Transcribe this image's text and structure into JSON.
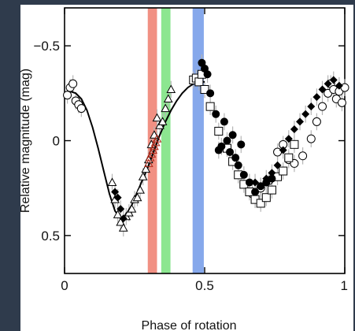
{
  "chart_data": {
    "type": "scatter",
    "title": "",
    "xlabel": "Phase of rotation",
    "ylabel": "Relative magnitude (mag)",
    "xlim": [
      0,
      1
    ],
    "ylim": [
      0.7,
      -0.7
    ],
    "inverted_y": true,
    "xticks": [
      0,
      0.5,
      1
    ],
    "xtick_labels": [
      "0",
      "0.5",
      "1"
    ],
    "yticks": [
      -0.5,
      0,
      0.5
    ],
    "ytick_labels": [
      "−0.5",
      "0",
      "0.5"
    ],
    "grid": false,
    "colors": {
      "background": "#2f3b4c",
      "plot_bg": "#ffffff",
      "red_band": "#f08a7c",
      "green_band": "#86e58a",
      "blue_band": "#7fa3ea",
      "marker": "#000000",
      "error_bar": "#b5b5b5"
    },
    "bands": [
      {
        "color_name": "red",
        "x_start": 0.297,
        "x_end": 0.33,
        "color": "#f08a7c"
      },
      {
        "color_name": "green",
        "x_start": 0.345,
        "x_end": 0.378,
        "color": "#86e58a"
      },
      {
        "color_name": "blue",
        "x_start": 0.457,
        "x_end": 0.497,
        "color": "#7fa3ea"
      }
    ],
    "model_curve": {
      "x": [
        0.0,
        0.02,
        0.04,
        0.06,
        0.08,
        0.1,
        0.12,
        0.14,
        0.16,
        0.18,
        0.2,
        0.22,
        0.24,
        0.26,
        0.28,
        0.3,
        0.32,
        0.34,
        0.36,
        0.38,
        0.4,
        0.42,
        0.44,
        0.46,
        0.48,
        0.5
      ],
      "y": [
        -0.25,
        -0.26,
        -0.25,
        -0.22,
        -0.16,
        -0.07,
        0.04,
        0.16,
        0.28,
        0.37,
        0.41,
        0.39,
        0.34,
        0.27,
        0.2,
        0.13,
        0.05,
        -0.03,
        -0.1,
        -0.16,
        -0.21,
        -0.25,
        -0.28,
        -0.3,
        -0.31,
        -0.31
      ]
    },
    "series": [
      {
        "marker": "circle-open",
        "x": [
          0.01,
          0.02,
          0.03,
          0.04,
          0.05,
          0.06,
          0.67,
          0.7,
          0.73,
          0.76,
          0.78,
          0.8,
          0.82,
          0.85,
          0.88,
          0.9,
          0.92,
          0.94,
          0.95,
          0.96,
          0.97,
          0.98,
          0.99,
          1.0
        ],
        "y": [
          -0.24,
          -0.28,
          -0.3,
          -0.21,
          -0.19,
          -0.17,
          0.28,
          0.25,
          0.21,
          0.06,
          0.02,
          0.1,
          0.12,
          0.08,
          -0.01,
          -0.1,
          -0.18,
          -0.25,
          -0.3,
          -0.27,
          -0.22,
          -0.26,
          -0.2,
          -0.28
        ]
      },
      {
        "marker": "triangle-open",
        "x": [
          0.17,
          0.18,
          0.19,
          0.2,
          0.21,
          0.22,
          0.23,
          0.24,
          0.25,
          0.26,
          0.27,
          0.28,
          0.29,
          0.3,
          0.31,
          0.32,
          0.33,
          0.34,
          0.35,
          0.36,
          0.37,
          0.38
        ],
        "y": [
          0.22,
          0.31,
          0.39,
          0.43,
          0.46,
          0.4,
          0.38,
          0.36,
          0.31,
          0.3,
          0.26,
          0.19,
          0.15,
          0.1,
          0.02,
          -0.03,
          -0.12,
          -0.08,
          -0.1,
          -0.17,
          -0.22,
          -0.27
        ]
      },
      {
        "marker": "square-open",
        "x": [
          0.46,
          0.47,
          0.48,
          0.49,
          0.5,
          0.52,
          0.55,
          0.58,
          0.6,
          0.62,
          0.64,
          0.66,
          0.68,
          0.7,
          0.72,
          0.74,
          0.76,
          0.78,
          0.8,
          0.82
        ],
        "y": [
          -0.32,
          -0.33,
          -0.31,
          -0.35,
          -0.27,
          -0.18,
          -0.05,
          0.04,
          0.11,
          0.18,
          0.23,
          0.27,
          0.31,
          0.33,
          0.3,
          0.26,
          0.19,
          0.16,
          0.09,
          0.02
        ]
      },
      {
        "marker": "circle-filled",
        "x": [
          0.49,
          0.5,
          0.51,
          0.52,
          0.54,
          0.55,
          0.56,
          0.57,
          0.58,
          0.59,
          0.6,
          0.61,
          0.62,
          0.63,
          0.64,
          0.66,
          0.68,
          0.7,
          0.72,
          0.74
        ],
        "y": [
          -0.41,
          -0.38,
          -0.35,
          -0.25,
          -0.14,
          0.05,
          0.03,
          -0.1,
          0.0,
          0.06,
          -0.03,
          0.09,
          0.13,
          0.02,
          0.18,
          0.22,
          0.27,
          0.24,
          0.22,
          0.2
        ]
      },
      {
        "marker": "diamond-filled",
        "x": [
          0.18,
          0.19,
          0.2,
          0.21,
          0.68,
          0.7,
          0.72,
          0.74,
          0.76,
          0.78,
          0.8,
          0.82,
          0.84,
          0.86,
          0.88,
          0.9,
          0.92,
          0.94,
          0.96,
          0.98
        ],
        "y": [
          0.27,
          0.3,
          0.36,
          0.41,
          0.22,
          0.24,
          0.2,
          0.17,
          0.13,
          0.05,
          -0.01,
          -0.06,
          -0.1,
          -0.14,
          -0.18,
          -0.23,
          -0.27,
          -0.3,
          -0.32,
          -0.29
        ]
      },
      {
        "marker": "triangle-red",
        "x": [
          0.3,
          0.305,
          0.31,
          0.315,
          0.32,
          0.325,
          0.33
        ],
        "y": [
          0.12,
          0.09,
          0.07,
          0.05,
          0.03,
          0.01,
          -0.01
        ]
      }
    ]
  }
}
